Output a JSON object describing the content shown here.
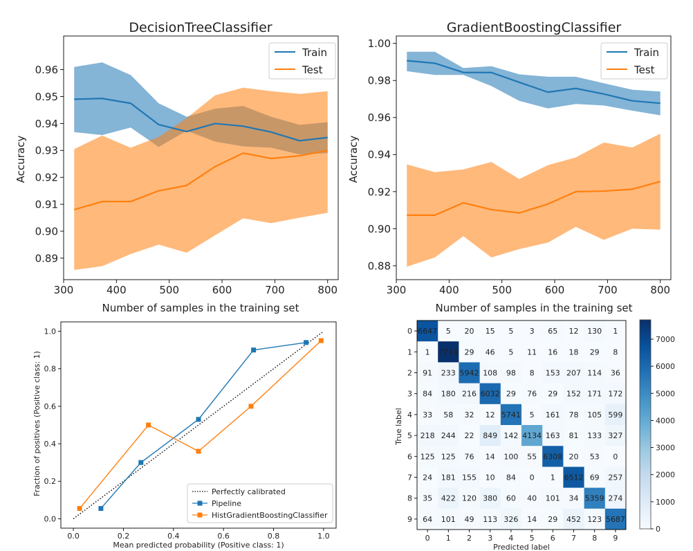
{
  "chart_data": [
    {
      "type": "line",
      "title": "DecisionTreeClassifier",
      "xlabel": "Number of samples in the training set",
      "ylabel": "Accuracy",
      "xlim": [
        300,
        820
      ],
      "ylim": [
        0.882,
        0.9725
      ],
      "xticks": [
        300,
        400,
        500,
        600,
        700,
        800
      ],
      "yticks": [
        0.89,
        0.9,
        0.91,
        0.92,
        0.93,
        0.94,
        0.95,
        0.96
      ],
      "ytick_decimals": 2,
      "legend_position": "top-right",
      "x": [
        320,
        373,
        427,
        480,
        533,
        587,
        640,
        693,
        747,
        800
      ],
      "series": [
        {
          "name": "Train",
          "color": "#1f77b4",
          "values": [
            0.949,
            0.9493,
            0.9475,
            0.9396,
            0.937,
            0.94,
            0.939,
            0.9368,
            0.9336,
            0.9348
          ],
          "lower": [
            0.9368,
            0.9357,
            0.9385,
            0.9313,
            0.9373,
            0.9333,
            0.9315,
            0.931,
            0.9285,
            0.929
          ],
          "upper": [
            0.961,
            0.9627,
            0.958,
            0.9475,
            0.9425,
            0.9455,
            0.9465,
            0.9425,
            0.9395,
            0.9405
          ]
        },
        {
          "name": "Test",
          "color": "#ff7f0e",
          "values": [
            0.908,
            0.911,
            0.911,
            0.915,
            0.917,
            0.924,
            0.929,
            0.927,
            0.928,
            0.93
          ],
          "lower": [
            0.8856,
            0.887,
            0.8915,
            0.895,
            0.892,
            0.8985,
            0.9048,
            0.903,
            0.905,
            0.9068
          ],
          "upper": [
            0.9305,
            0.9355,
            0.931,
            0.935,
            0.942,
            0.9505,
            0.9533,
            0.952,
            0.951,
            0.952
          ]
        }
      ]
    },
    {
      "type": "line",
      "title": "GradientBoostingClassifier",
      "xlabel": "Number of samples in the training set",
      "ylabel": "Accuracy",
      "xlim": [
        300,
        820
      ],
      "ylim": [
        0.8725,
        1.004
      ],
      "xticks": [
        300,
        400,
        500,
        600,
        700,
        800
      ],
      "yticks": [
        0.88,
        0.9,
        0.92,
        0.94,
        0.96,
        0.98,
        1.0
      ],
      "ytick_decimals": 2,
      "legend_position": "top-right",
      "x": [
        320,
        373,
        427,
        480,
        533,
        587,
        640,
        693,
        747,
        800
      ],
      "series": [
        {
          "name": "Train",
          "color": "#1f77b4",
          "values": [
            0.9907,
            0.9893,
            0.9843,
            0.9843,
            0.979,
            0.9737,
            0.9757,
            0.9727,
            0.969,
            0.9677
          ],
          "lower": [
            0.985,
            0.983,
            0.983,
            0.977,
            0.969,
            0.9649,
            0.9673,
            0.9665,
            0.9637,
            0.9612
          ],
          "upper": [
            0.9955,
            0.9955,
            0.9867,
            0.9877,
            0.9833,
            0.982,
            0.982,
            0.9785,
            0.975,
            0.974
          ]
        },
        {
          "name": "Test",
          "color": "#ff7f0e",
          "values": [
            0.9073,
            0.9073,
            0.914,
            0.9103,
            0.9085,
            0.9133,
            0.92,
            0.9203,
            0.9213,
            0.9255
          ],
          "lower": [
            0.8795,
            0.8845,
            0.896,
            0.8845,
            0.889,
            0.8925,
            0.901,
            0.894,
            0.9,
            0.8995
          ],
          "upper": [
            0.9347,
            0.9305,
            0.932,
            0.936,
            0.9268,
            0.9343,
            0.9385,
            0.9465,
            0.9438,
            0.9513
          ]
        }
      ]
    },
    {
      "type": "line",
      "title": "",
      "xlabel": "Mean predicted probability (Positive class: 1)",
      "ylabel": "Fraction of positives (Positive class: 1)",
      "xlim": [
        -0.05,
        1.05
      ],
      "ylim": [
        -0.05,
        1.05
      ],
      "xticks": [
        0.0,
        0.2,
        0.4,
        0.6,
        0.8,
        1.0
      ],
      "yticks": [
        0.0,
        0.2,
        0.4,
        0.6,
        0.8,
        1.0
      ],
      "ytick_decimals": 1,
      "legend_position": "bottom-right",
      "series": [
        {
          "name": "Perfectly calibrated",
          "color": "#000000",
          "style": "dotted",
          "x": [
            0.0,
            1.0
          ],
          "values": [
            0.0,
            1.0
          ]
        },
        {
          "name": "Pipeline",
          "color": "#1f77b4",
          "marker": "square",
          "x": [
            0.11,
            0.27,
            0.5,
            0.72,
            0.93
          ],
          "values": [
            0.055,
            0.3,
            0.53,
            0.9,
            0.94
          ]
        },
        {
          "name": "HistGradientBoostingClassifier",
          "color": "#ff7f0e",
          "marker": "square",
          "x": [
            0.025,
            0.3,
            0.5,
            0.71,
            0.99
          ],
          "values": [
            0.055,
            0.5,
            0.36,
            0.6,
            0.95
          ]
        }
      ]
    },
    {
      "type": "heatmap",
      "title": "",
      "xlabel": "Predicted label",
      "ylabel": "True label",
      "labels": [
        "0",
        "1",
        "2",
        "3",
        "4",
        "5",
        "6",
        "7",
        "8",
        "9"
      ],
      "matrix": [
        [
          6647,
          5,
          20,
          15,
          5,
          3,
          65,
          12,
          130,
          1
        ],
        [
          1,
          7714,
          29,
          46,
          5,
          11,
          16,
          18,
          29,
          8
        ],
        [
          91,
          233,
          5942,
          108,
          98,
          8,
          153,
          207,
          114,
          36
        ],
        [
          84,
          180,
          216,
          6032,
          29,
          76,
          29,
          152,
          171,
          172
        ],
        [
          33,
          58,
          32,
          12,
          5741,
          5,
          161,
          78,
          105,
          599
        ],
        [
          218,
          244,
          22,
          849,
          142,
          4134,
          163,
          81,
          133,
          327
        ],
        [
          125,
          125,
          76,
          14,
          100,
          55,
          6308,
          20,
          53,
          0
        ],
        [
          24,
          181,
          155,
          10,
          84,
          0,
          1,
          6512,
          69,
          257
        ],
        [
          35,
          422,
          120,
          380,
          60,
          40,
          101,
          34,
          5359,
          274
        ],
        [
          64,
          101,
          49,
          113,
          326,
          14,
          29,
          452,
          123,
          5687
        ]
      ],
      "colorbar": {
        "min": 0,
        "max": 7714,
        "ticks": [
          0,
          1000,
          2000,
          3000,
          4000,
          5000,
          6000,
          7000
        ]
      },
      "colormap": "Blues"
    }
  ]
}
